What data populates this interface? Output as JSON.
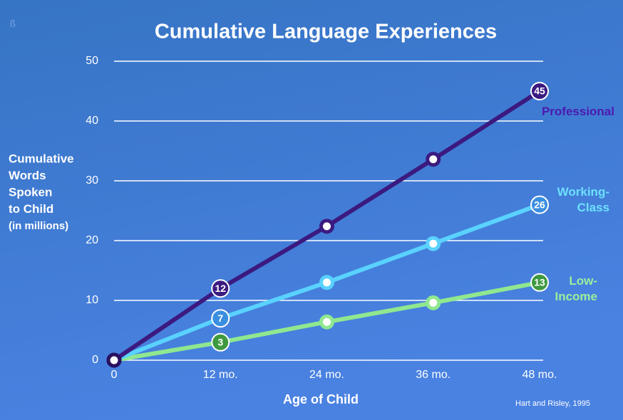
{
  "chart_data": {
    "type": "line",
    "title": "Cumulative Language Experiences",
    "corner_mark": "ß",
    "ylabel": [
      "Cumulative",
      "Words",
      "Spoken",
      "to Child",
      "(in millions)"
    ],
    "xlabel": "Age of Child",
    "source": "Hart and Risley, 1995",
    "categories": [
      "0",
      "12 mo.",
      "24 mo.",
      "36 mo.",
      "48 mo."
    ],
    "series": [
      {
        "name": "Professional",
        "color": "#3b1a80",
        "label_color": "#4b1ab0",
        "values": [
          0,
          12,
          22.4,
          33.6,
          45
        ],
        "value_labels": [
          null,
          "12",
          null,
          null,
          "45"
        ]
      },
      {
        "name": "Working-Class",
        "color": "#5ad2ff",
        "label_color": "#6ee0ff",
        "values": [
          0,
          7,
          13,
          19.5,
          26
        ],
        "value_labels": [
          null,
          "7",
          null,
          null,
          "26"
        ]
      },
      {
        "name": "Low-Income",
        "color": "#8fe88f",
        "label_color": "#9af09a",
        "values": [
          0,
          3,
          6.4,
          9.6,
          13
        ],
        "value_labels": [
          null,
          "3",
          null,
          null,
          "13"
        ]
      }
    ],
    "ylim": [
      0,
      50
    ],
    "yticks": [
      0,
      10,
      20,
      30,
      40,
      50
    ],
    "grid": true
  }
}
